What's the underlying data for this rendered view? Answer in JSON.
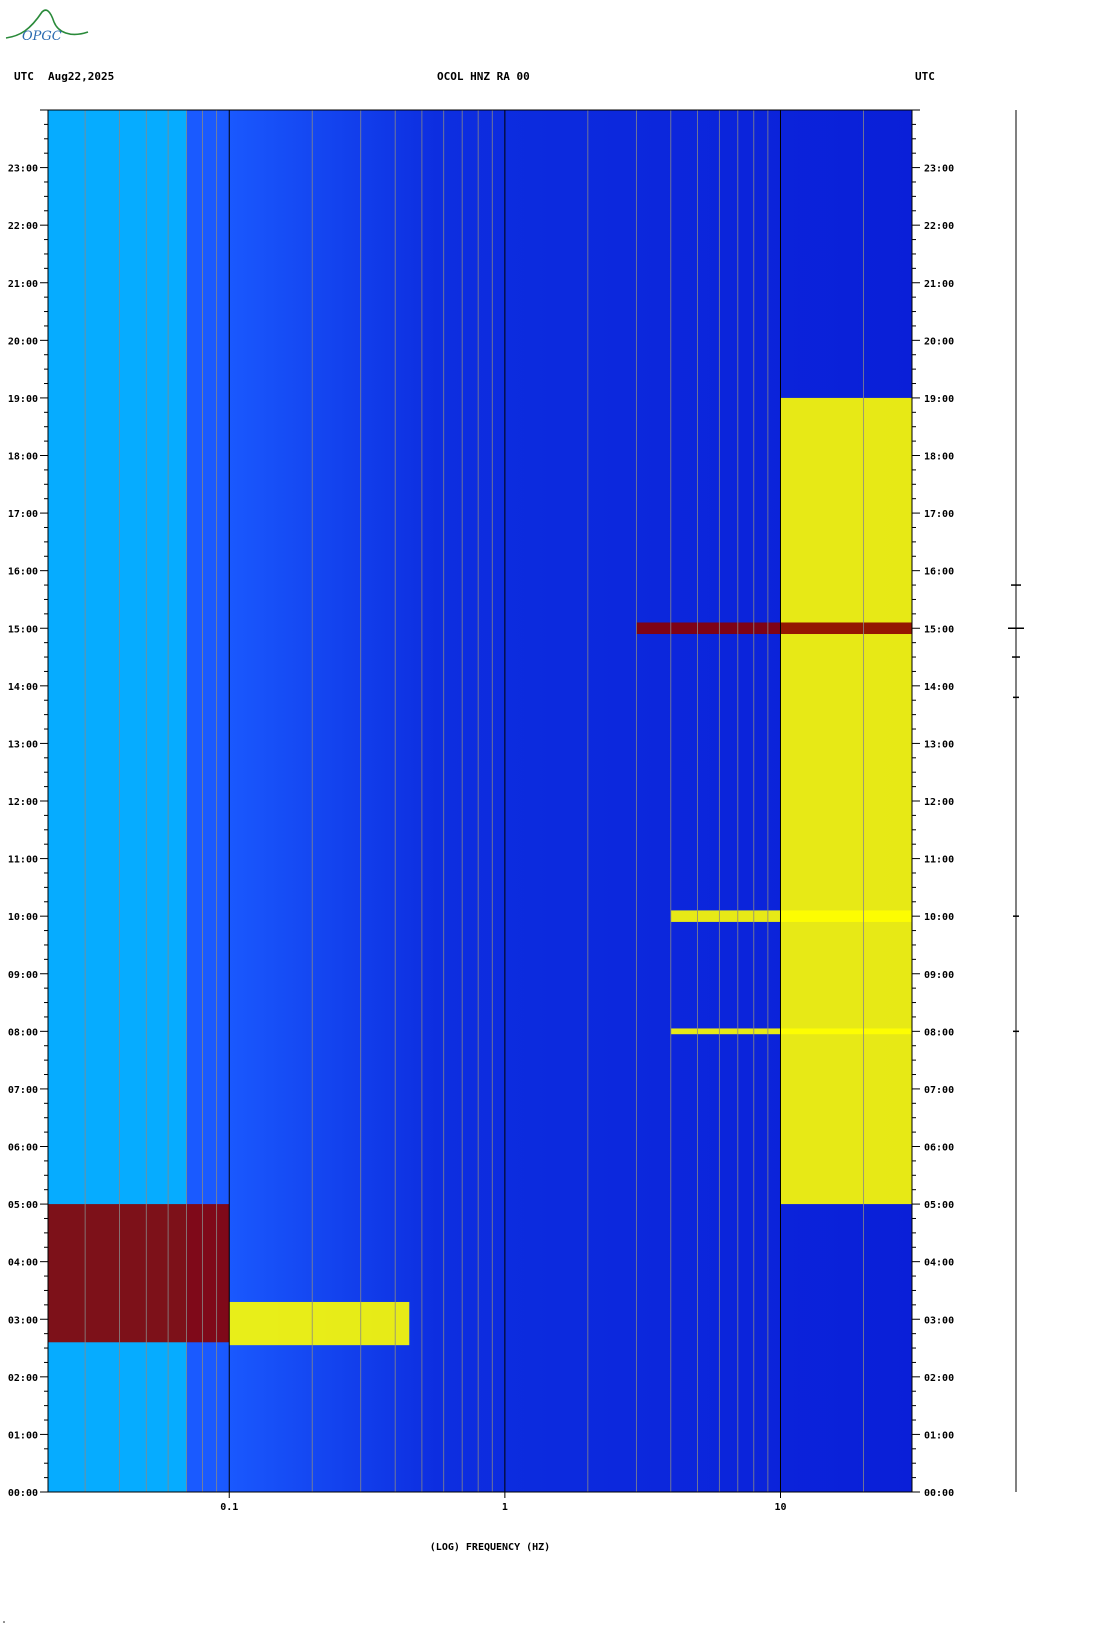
{
  "header": {
    "logo_text": "OPGC",
    "left_tz": "UTC",
    "date": "Aug22,2025",
    "station": "OCOL HNZ RA 00",
    "right_tz": "UTC"
  },
  "corner_mark": "ᵃ",
  "colors": {
    "background": "#0a1fd8",
    "low": "#1040ff",
    "mid": "#00c8ff",
    "high": "#ffff00",
    "peak": "#8b0000",
    "grid_major": "#000000",
    "grid_minor": "#888888",
    "logo": "#2a8a3a"
  },
  "chart_data": {
    "type": "heatmap",
    "title": "OCOL HNZ RA 00",
    "xlabel": "(LOG) FREQUENCY (HZ)",
    "x_scale": "log",
    "xlim": [
      0.022,
      30
    ],
    "x_tick_labels": [
      "0.1",
      "1",
      "10"
    ],
    "x_tick_values": [
      0.1,
      1,
      10
    ],
    "ylabel": "UTC",
    "ylim_hours": [
      0,
      24
    ],
    "y_tick_labels": [
      "00:00",
      "01:00",
      "02:00",
      "03:00",
      "04:00",
      "05:00",
      "06:00",
      "07:00",
      "08:00",
      "09:00",
      "10:00",
      "11:00",
      "12:00",
      "13:00",
      "14:00",
      "15:00",
      "16:00",
      "17:00",
      "18:00",
      "19:00",
      "20:00",
      "21:00",
      "22:00",
      "23:00"
    ],
    "grid": true,
    "features": [
      {
        "label": "low-frequency background",
        "f_range": [
          0.022,
          0.07
        ],
        "t_range": [
          0,
          24
        ],
        "level": "mid"
      },
      {
        "label": "teleseismic event",
        "f_range": [
          0.022,
          0.1
        ],
        "t_range": [
          2.6,
          5.0
        ],
        "level": "peak"
      },
      {
        "label": "dispersed surface wave tail",
        "f_range": [
          0.1,
          0.45
        ],
        "t_range": [
          2.55,
          3.3
        ],
        "level": "high"
      },
      {
        "label": "high-frequency daytime noise",
        "f_range": [
          10,
          30
        ],
        "t_range": [
          5.0,
          19.0
        ],
        "level": "high"
      },
      {
        "label": "burst",
        "f_range": [
          3,
          30
        ],
        "t_range": [
          14.9,
          15.1
        ],
        "level": "peak"
      },
      {
        "label": "burst",
        "f_range": [
          4,
          30
        ],
        "t_range": [
          7.95,
          8.05
        ],
        "level": "high"
      },
      {
        "label": "burst",
        "f_range": [
          4,
          30
        ],
        "t_range": [
          9.9,
          10.1
        ],
        "level": "high"
      }
    ]
  }
}
